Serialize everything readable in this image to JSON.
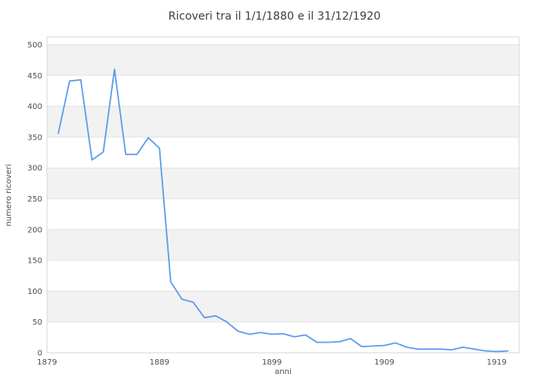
{
  "chart_data": {
    "type": "line",
    "title": "Ricoveri tra il 1/1/1880 e il 31/12/1920",
    "xlabel": "anni",
    "ylabel": "numero ricoveri",
    "x_ticks": [
      1879,
      1889,
      1899,
      1909,
      1919
    ],
    "y_ticks": [
      0,
      50,
      100,
      150,
      200,
      250,
      300,
      350,
      400,
      450,
      500
    ],
    "xlim": [
      1879,
      1921
    ],
    "ylim": [
      0,
      512
    ],
    "grid": true,
    "legend": false,
    "banded_background": true,
    "series": [
      {
        "name": "ricoveri",
        "x": [
          1880,
          1881,
          1882,
          1883,
          1884,
          1885,
          1886,
          1887,
          1888,
          1889,
          1890,
          1891,
          1892,
          1893,
          1894,
          1895,
          1896,
          1897,
          1898,
          1899,
          1900,
          1901,
          1902,
          1903,
          1904,
          1905,
          1906,
          1907,
          1908,
          1909,
          1910,
          1911,
          1912,
          1913,
          1914,
          1915,
          1916,
          1917,
          1918,
          1919,
          1920
        ],
        "values": [
          356,
          441,
          443,
          313,
          326,
          460,
          322,
          322,
          349,
          332,
          115,
          87,
          82,
          57,
          60,
          50,
          35,
          30,
          33,
          30,
          31,
          26,
          29,
          17,
          17,
          18,
          23,
          10,
          11,
          12,
          16,
          9,
          6,
          6,
          6,
          5,
          9,
          6,
          3,
          2,
          3
        ]
      }
    ],
    "colors": {
      "line": "#5d9cec",
      "band": "#f2f2f2",
      "grid": "#e3e3e3",
      "border": "#d7d7d7",
      "title_text": "#3d3d3d",
      "tick_text": "#4d4d4d",
      "background": "#ffffff"
    }
  }
}
